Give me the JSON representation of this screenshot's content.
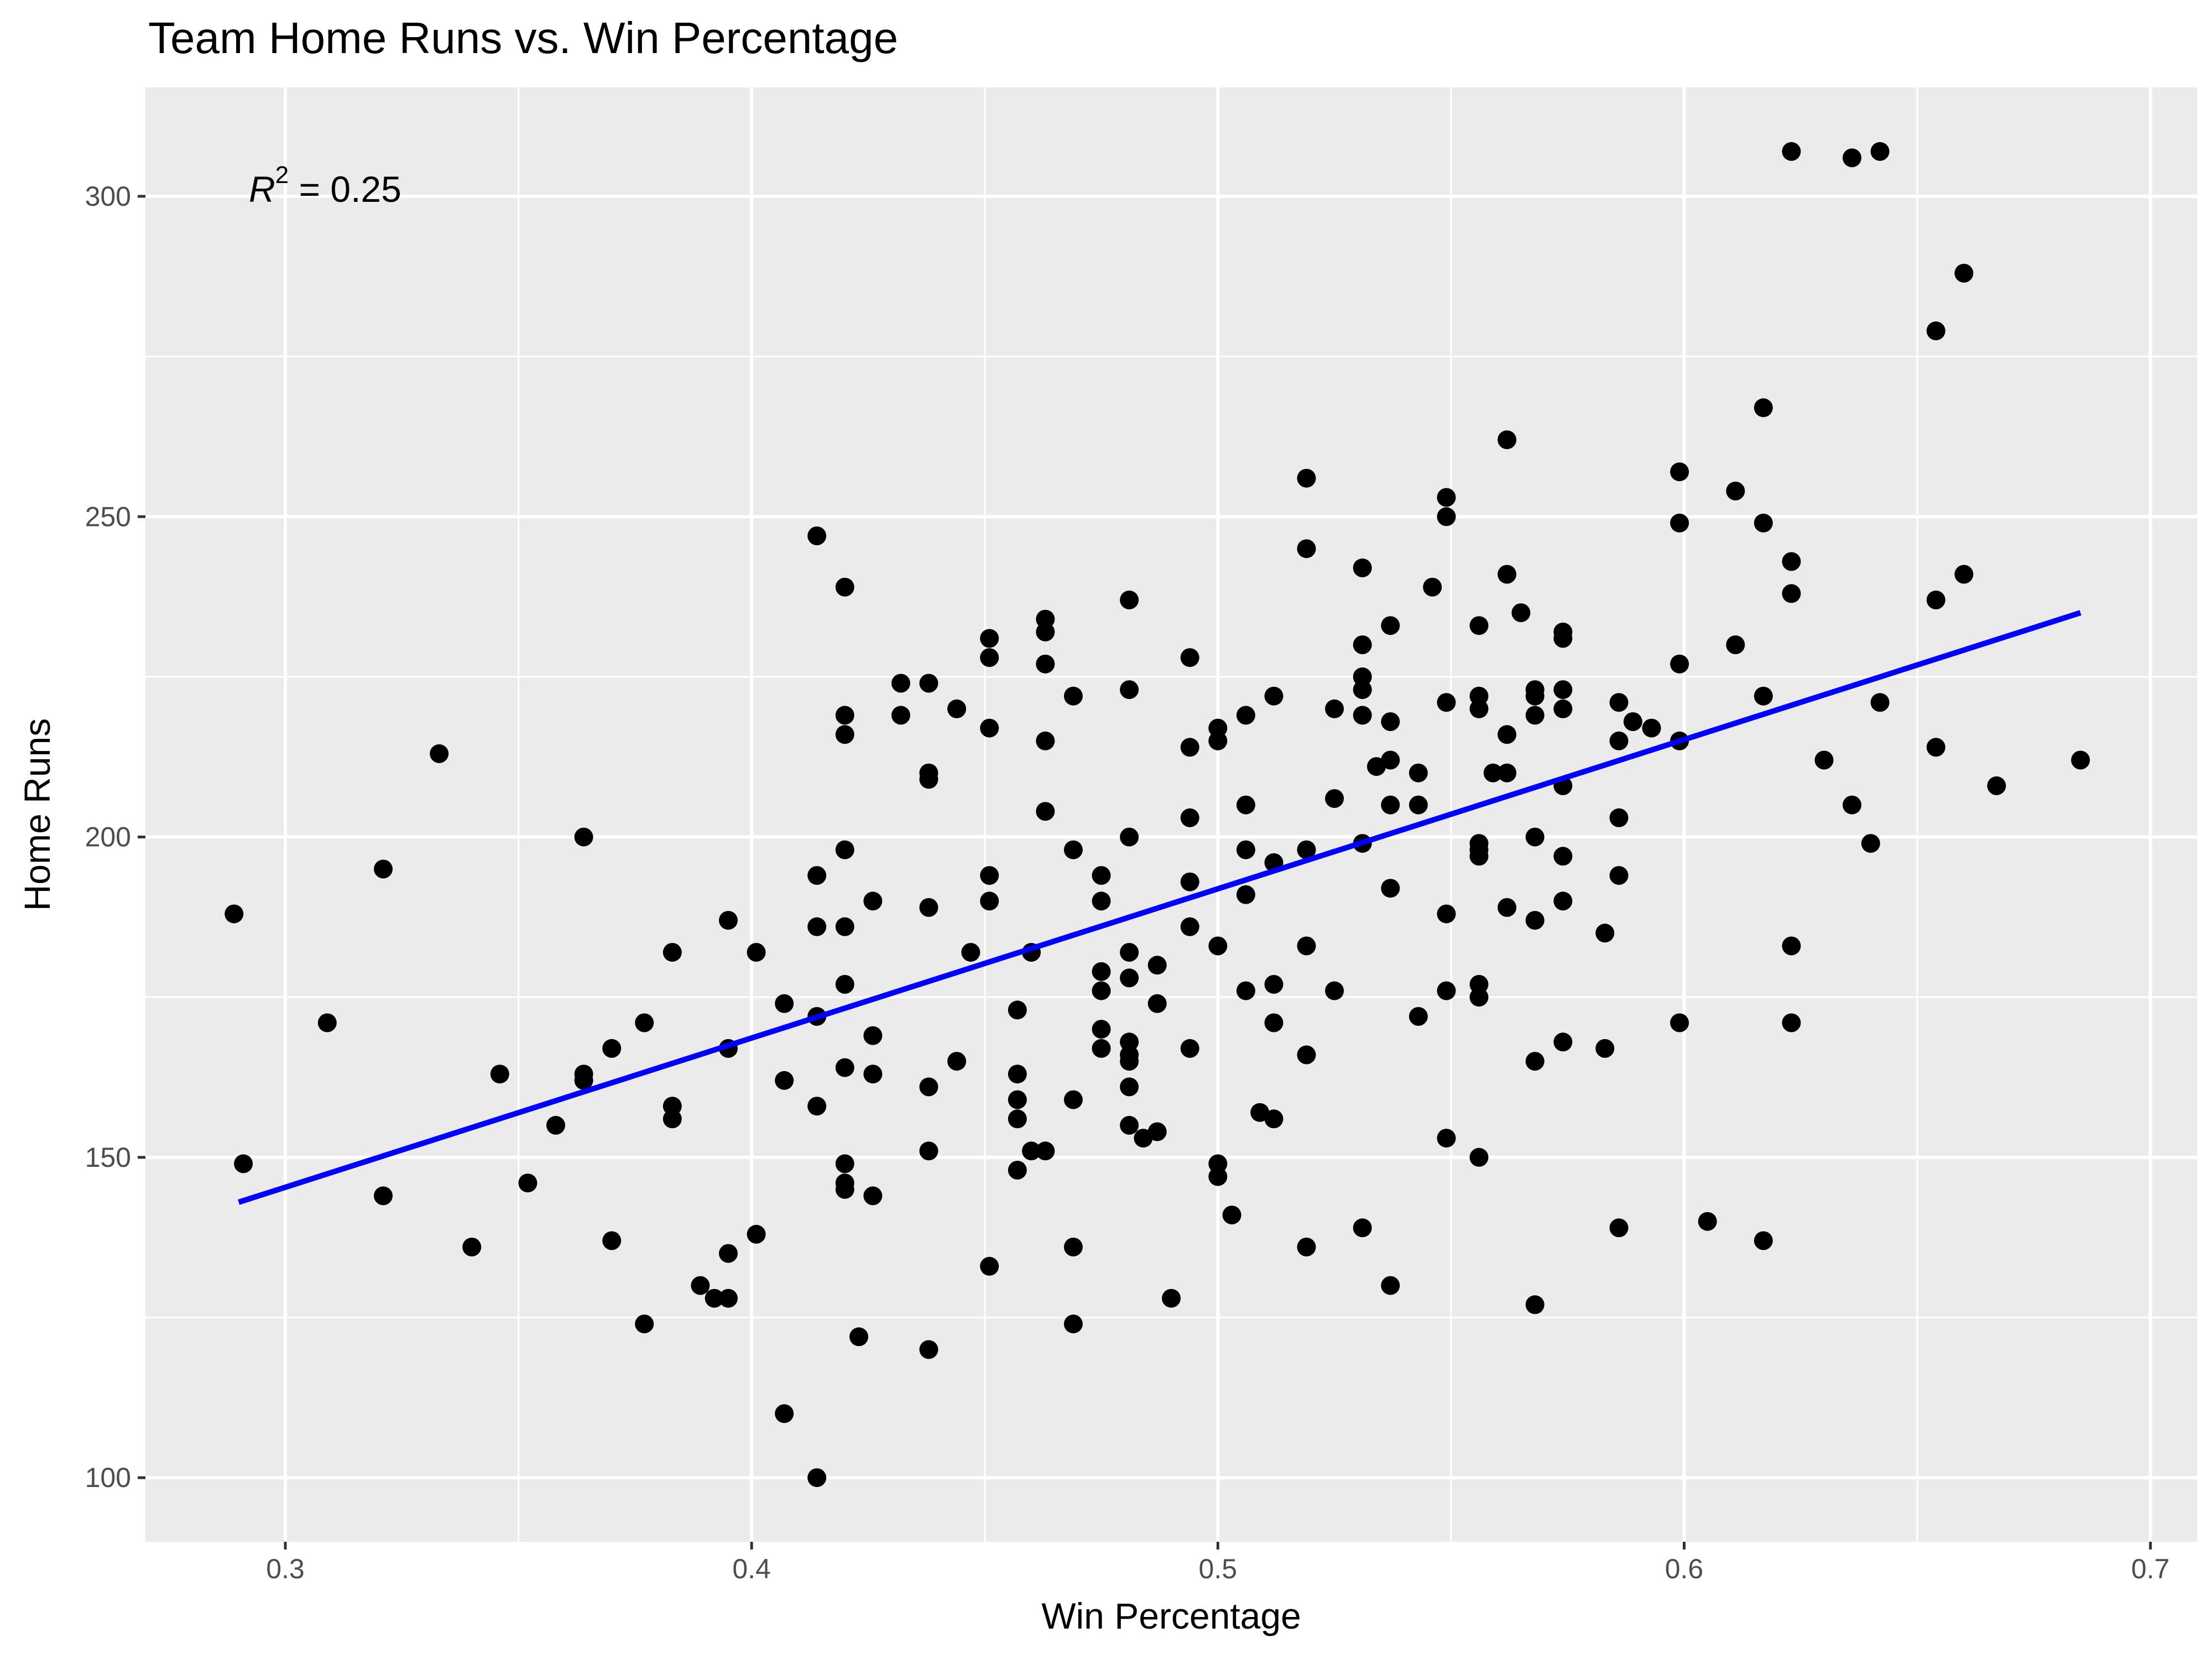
{
  "chart_data": {
    "type": "scatter",
    "title": "Team Home Runs vs. Win Percentage",
    "xlabel": "Win Percentage",
    "ylabel": "Home Runs",
    "xlim": [
      0.27,
      0.71
    ],
    "ylim": [
      90,
      317
    ],
    "xticks": [
      "0.3",
      "0.4",
      "0.5",
      "0.6",
      "0.7"
    ],
    "yticks": [
      "100",
      "150",
      "200",
      "250",
      "300"
    ],
    "grid": true,
    "background": "#ebebeb",
    "point_color": "#000000",
    "annotation": {
      "lhs": "R",
      "sup": "2",
      "rhs": " = 0.25"
    },
    "regression_line": {
      "color": "#0000ff",
      "x": [
        0.29,
        0.685
      ],
      "y": [
        143,
        235
      ]
    },
    "points": [
      [
        0.289,
        188
      ],
      [
        0.291,
        149
      ],
      [
        0.309,
        171
      ],
      [
        0.321,
        195
      ],
      [
        0.321,
        144
      ],
      [
        0.333,
        213
      ],
      [
        0.34,
        136
      ],
      [
        0.346,
        163
      ],
      [
        0.352,
        146
      ],
      [
        0.358,
        155
      ],
      [
        0.364,
        200
      ],
      [
        0.364,
        163
      ],
      [
        0.364,
        162
      ],
      [
        0.37,
        167
      ],
      [
        0.37,
        137
      ],
      [
        0.377,
        171
      ],
      [
        0.377,
        124
      ],
      [
        0.383,
        182
      ],
      [
        0.383,
        158
      ],
      [
        0.383,
        156
      ],
      [
        0.389,
        130
      ],
      [
        0.392,
        128
      ],
      [
        0.395,
        187
      ],
      [
        0.395,
        167
      ],
      [
        0.395,
        135
      ],
      [
        0.395,
        128
      ],
      [
        0.401,
        182
      ],
      [
        0.401,
        138
      ],
      [
        0.407,
        174
      ],
      [
        0.407,
        162
      ],
      [
        0.407,
        110
      ],
      [
        0.414,
        247
      ],
      [
        0.414,
        194
      ],
      [
        0.414,
        186
      ],
      [
        0.414,
        172
      ],
      [
        0.414,
        158
      ],
      [
        0.414,
        100
      ],
      [
        0.42,
        239
      ],
      [
        0.42,
        219
      ],
      [
        0.42,
        216
      ],
      [
        0.42,
        198
      ],
      [
        0.42,
        186
      ],
      [
        0.42,
        177
      ],
      [
        0.42,
        164
      ],
      [
        0.42,
        149
      ],
      [
        0.42,
        146
      ],
      [
        0.42,
        145
      ],
      [
        0.423,
        122
      ],
      [
        0.426,
        190
      ],
      [
        0.426,
        169
      ],
      [
        0.426,
        163
      ],
      [
        0.426,
        144
      ],
      [
        0.432,
        224
      ],
      [
        0.432,
        219
      ],
      [
        0.438,
        224
      ],
      [
        0.438,
        210
      ],
      [
        0.438,
        209
      ],
      [
        0.438,
        189
      ],
      [
        0.438,
        161
      ],
      [
        0.438,
        151
      ],
      [
        0.438,
        120
      ],
      [
        0.444,
        220
      ],
      [
        0.444,
        165
      ],
      [
        0.447,
        182
      ],
      [
        0.451,
        231
      ],
      [
        0.451,
        228
      ],
      [
        0.451,
        217
      ],
      [
        0.451,
        194
      ],
      [
        0.451,
        190
      ],
      [
        0.451,
        133
      ],
      [
        0.457,
        173
      ],
      [
        0.457,
        163
      ],
      [
        0.457,
        159
      ],
      [
        0.457,
        156
      ],
      [
        0.457,
        148
      ],
      [
        0.46,
        182
      ],
      [
        0.46,
        151
      ],
      [
        0.463,
        234
      ],
      [
        0.463,
        232
      ],
      [
        0.463,
        227
      ],
      [
        0.463,
        215
      ],
      [
        0.463,
        204
      ],
      [
        0.463,
        151
      ],
      [
        0.469,
        222
      ],
      [
        0.469,
        198
      ],
      [
        0.469,
        159
      ],
      [
        0.469,
        136
      ],
      [
        0.469,
        124
      ],
      [
        0.475,
        194
      ],
      [
        0.475,
        190
      ],
      [
        0.475,
        179
      ],
      [
        0.475,
        176
      ],
      [
        0.475,
        170
      ],
      [
        0.475,
        167
      ],
      [
        0.481,
        237
      ],
      [
        0.481,
        223
      ],
      [
        0.481,
        200
      ],
      [
        0.481,
        182
      ],
      [
        0.481,
        178
      ],
      [
        0.481,
        168
      ],
      [
        0.481,
        166
      ],
      [
        0.481,
        165
      ],
      [
        0.481,
        161
      ],
      [
        0.481,
        155
      ],
      [
        0.484,
        153
      ],
      [
        0.487,
        180
      ],
      [
        0.487,
        174
      ],
      [
        0.487,
        154
      ],
      [
        0.49,
        128
      ],
      [
        0.494,
        228
      ],
      [
        0.494,
        214
      ],
      [
        0.494,
        203
      ],
      [
        0.494,
        193
      ],
      [
        0.494,
        186
      ],
      [
        0.494,
        167
      ],
      [
        0.5,
        217
      ],
      [
        0.5,
        215
      ],
      [
        0.5,
        183
      ],
      [
        0.5,
        149
      ],
      [
        0.5,
        147
      ],
      [
        0.503,
        141
      ],
      [
        0.506,
        219
      ],
      [
        0.506,
        205
      ],
      [
        0.506,
        198
      ],
      [
        0.506,
        191
      ],
      [
        0.506,
        176
      ],
      [
        0.509,
        157
      ],
      [
        0.512,
        222
      ],
      [
        0.512,
        196
      ],
      [
        0.512,
        177
      ],
      [
        0.512,
        171
      ],
      [
        0.512,
        156
      ],
      [
        0.519,
        256
      ],
      [
        0.519,
        245
      ],
      [
        0.519,
        198
      ],
      [
        0.519,
        183
      ],
      [
        0.519,
        166
      ],
      [
        0.519,
        136
      ],
      [
        0.525,
        220
      ],
      [
        0.525,
        206
      ],
      [
        0.525,
        176
      ],
      [
        0.531,
        242
      ],
      [
        0.531,
        230
      ],
      [
        0.531,
        225
      ],
      [
        0.531,
        223
      ],
      [
        0.531,
        219
      ],
      [
        0.531,
        199
      ],
      [
        0.531,
        139
      ],
      [
        0.534,
        211
      ],
      [
        0.537,
        233
      ],
      [
        0.537,
        218
      ],
      [
        0.537,
        212
      ],
      [
        0.537,
        205
      ],
      [
        0.537,
        192
      ],
      [
        0.537,
        130
      ],
      [
        0.543,
        210
      ],
      [
        0.543,
        205
      ],
      [
        0.543,
        172
      ],
      [
        0.546,
        239
      ],
      [
        0.549,
        253
      ],
      [
        0.549,
        250
      ],
      [
        0.549,
        221
      ],
      [
        0.549,
        188
      ],
      [
        0.549,
        176
      ],
      [
        0.549,
        153
      ],
      [
        0.556,
        233
      ],
      [
        0.556,
        222
      ],
      [
        0.556,
        220
      ],
      [
        0.556,
        199
      ],
      [
        0.556,
        198
      ],
      [
        0.556,
        197
      ],
      [
        0.556,
        177
      ],
      [
        0.556,
        175
      ],
      [
        0.556,
        150
      ],
      [
        0.559,
        210
      ],
      [
        0.562,
        262
      ],
      [
        0.562,
        241
      ],
      [
        0.562,
        216
      ],
      [
        0.562,
        210
      ],
      [
        0.562,
        189
      ],
      [
        0.565,
        235
      ],
      [
        0.568,
        223
      ],
      [
        0.568,
        222
      ],
      [
        0.568,
        219
      ],
      [
        0.568,
        200
      ],
      [
        0.568,
        187
      ],
      [
        0.568,
        165
      ],
      [
        0.568,
        127
      ],
      [
        0.574,
        232
      ],
      [
        0.574,
        231
      ],
      [
        0.574,
        223
      ],
      [
        0.574,
        220
      ],
      [
        0.574,
        208
      ],
      [
        0.574,
        197
      ],
      [
        0.574,
        190
      ],
      [
        0.574,
        168
      ],
      [
        0.583,
        185
      ],
      [
        0.583,
        167
      ],
      [
        0.586,
        221
      ],
      [
        0.586,
        215
      ],
      [
        0.586,
        203
      ],
      [
        0.586,
        194
      ],
      [
        0.586,
        139
      ],
      [
        0.589,
        218
      ],
      [
        0.593,
        217
      ],
      [
        0.599,
        257
      ],
      [
        0.599,
        249
      ],
      [
        0.599,
        227
      ],
      [
        0.599,
        215
      ],
      [
        0.599,
        171
      ],
      [
        0.605,
        140
      ],
      [
        0.611,
        254
      ],
      [
        0.611,
        230
      ],
      [
        0.617,
        267
      ],
      [
        0.617,
        249
      ],
      [
        0.617,
        222
      ],
      [
        0.617,
        137
      ],
      [
        0.623,
        307
      ],
      [
        0.623,
        243
      ],
      [
        0.623,
        238
      ],
      [
        0.623,
        183
      ],
      [
        0.623,
        171
      ],
      [
        0.63,
        212
      ],
      [
        0.636,
        306
      ],
      [
        0.636,
        205
      ],
      [
        0.64,
        199
      ],
      [
        0.642,
        307
      ],
      [
        0.642,
        221
      ],
      [
        0.654,
        279
      ],
      [
        0.654,
        237
      ],
      [
        0.654,
        214
      ],
      [
        0.66,
        288
      ],
      [
        0.66,
        241
      ],
      [
        0.667,
        208
      ],
      [
        0.685,
        212
      ]
    ]
  }
}
